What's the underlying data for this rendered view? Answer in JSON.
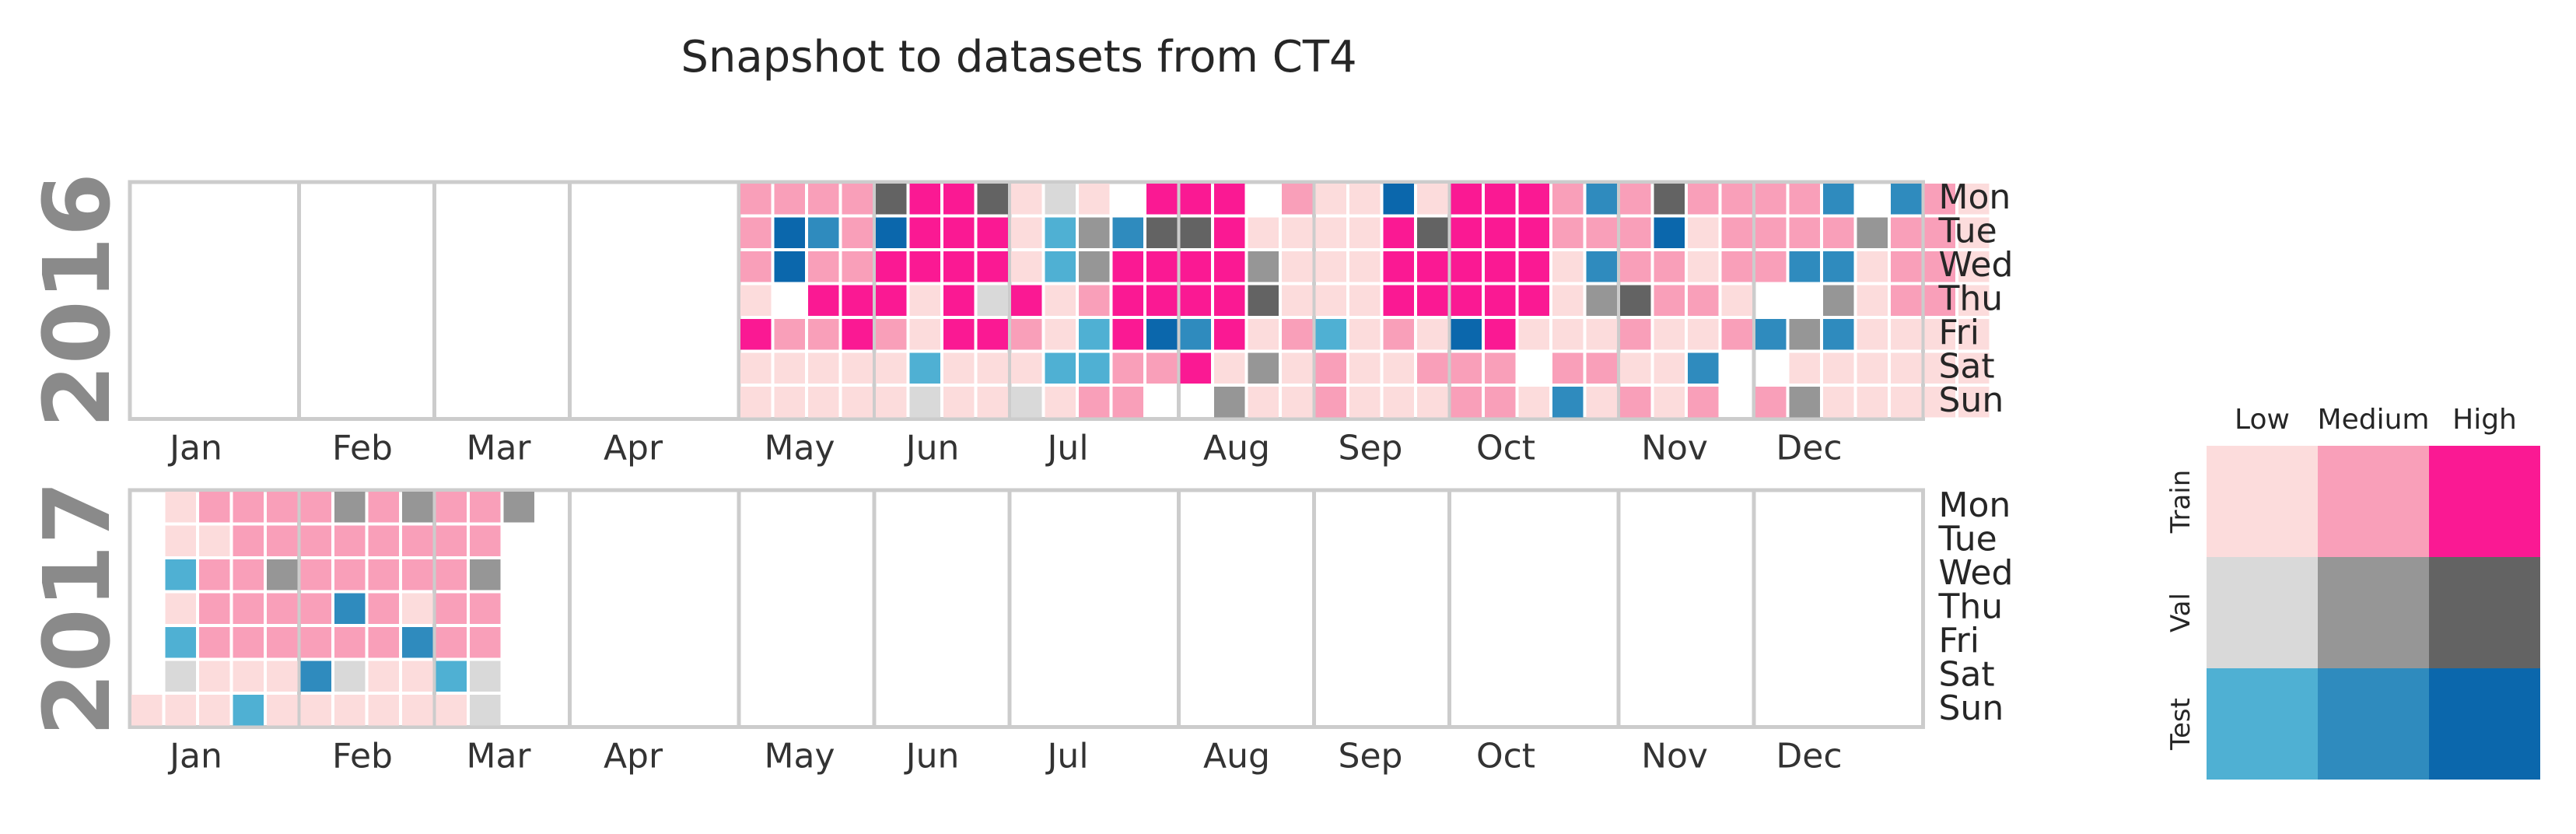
{
  "chart_data": {
    "type": "heatmap",
    "title": "Snapshot to datasets from CT4",
    "subtype": "calendar-heatmap",
    "months": [
      "Jan",
      "Feb",
      "Mar",
      "Apr",
      "May",
      "Jun",
      "Jul",
      "Aug",
      "Sep",
      "Oct",
      "Nov",
      "Dec"
    ],
    "weekdays": [
      "Mon",
      "Tue",
      "Wed",
      "Thu",
      "Fri",
      "Sat",
      "Sun"
    ],
    "category_codes": {
      "T1": "Train Low",
      "T2": "Train Medium",
      "T3": "Train High",
      "V1": "Val Low",
      "V2": "Val Medium",
      "V3": "Val High",
      "S1": "Test Low",
      "S2": "Test Medium",
      "S3": "Test High",
      "-": "no data"
    },
    "years": [
      {
        "year": "2016",
        "first_week": 18,
        "weeks": [
          [
            "T2",
            "T2",
            "T2",
            "T1",
            "T3",
            "T1",
            "T1"
          ],
          [
            "T2",
            "S3",
            "S3",
            "-",
            "T2",
            "T1",
            "T1"
          ],
          [
            "T2",
            "S2",
            "T2",
            "T3",
            "T2",
            "T1",
            "T1"
          ],
          [
            "T2",
            "T2",
            "T2",
            "T3",
            "T3",
            "T1",
            "T1"
          ],
          [
            "V3",
            "S3",
            "T3",
            "T3",
            "T2",
            "T1",
            "T1"
          ],
          [
            "T3",
            "T3",
            "T3",
            "T1",
            "T1",
            "S1",
            "V1"
          ],
          [
            "T3",
            "T3",
            "T3",
            "T3",
            "T3",
            "T1",
            "T1"
          ],
          [
            "V3",
            "T3",
            "T3",
            "V1",
            "T3",
            "T1",
            "T1"
          ],
          [
            "T1",
            "T1",
            "T1",
            "T3",
            "T2",
            "T1",
            "V1"
          ],
          [
            "V1",
            "S1",
            "S1",
            "T1",
            "T1",
            "S1",
            "T1"
          ],
          [
            "T1",
            "V2",
            "V2",
            "T2",
            "S1",
            "S1",
            "T2"
          ],
          [
            "-",
            "S2",
            "T3",
            "T3",
            "T3",
            "T2",
            "T2"
          ],
          [
            "T3",
            "V3",
            "T3",
            "T3",
            "S3",
            "T2",
            "-"
          ],
          [
            "T3",
            "V3",
            "T3",
            "T3",
            "S2",
            "T3",
            "-"
          ],
          [
            "T3",
            "T3",
            "T3",
            "T3",
            "T3",
            "T1",
            "V2"
          ],
          [
            "-",
            "T1",
            "V2",
            "V3",
            "T1",
            "V2",
            "T1"
          ],
          [
            "T2",
            "T1",
            "T1",
            "T1",
            "T2",
            "T1",
            "T1"
          ],
          [
            "T1",
            "T1",
            "T1",
            "T1",
            "S1",
            "T2",
            "T2"
          ],
          [
            "T1",
            "T1",
            "T1",
            "T1",
            "T1",
            "T1",
            "T1"
          ],
          [
            "S3",
            "T3",
            "T3",
            "T3",
            "T2",
            "T1",
            "T1"
          ],
          [
            "T1",
            "V3",
            "T3",
            "T3",
            "T1",
            "T2",
            "T1"
          ],
          [
            "T3",
            "T3",
            "T3",
            "T3",
            "S3",
            "T2",
            "T2"
          ],
          [
            "T3",
            "T3",
            "T3",
            "T3",
            "T3",
            "T2",
            "T2"
          ],
          [
            "T3",
            "T3",
            "T3",
            "T3",
            "T1",
            "-",
            "T1"
          ],
          [
            "T2",
            "T2",
            "T1",
            "T1",
            "T1",
            "T2",
            "S2"
          ],
          [
            "S2",
            "T2",
            "S2",
            "V2",
            "T1",
            "T2",
            "T1"
          ],
          [
            "T2",
            "T2",
            "T2",
            "V3",
            "T2",
            "T1",
            "T2"
          ],
          [
            "V3",
            "S3",
            "T2",
            "T2",
            "T1",
            "T1",
            "T1"
          ],
          [
            "T2",
            "T1",
            "T1",
            "T2",
            "T1",
            "S2",
            "T2"
          ],
          [
            "T2",
            "T2",
            "T2",
            "T1",
            "T2",
            "-",
            "-"
          ],
          [
            "T2",
            "T2",
            "T2",
            "-",
            "S2",
            "-",
            "T2"
          ],
          [
            "T2",
            "T2",
            "S2",
            "-",
            "V2",
            "T1",
            "V2"
          ],
          [
            "S2",
            "T2",
            "S2",
            "V2",
            "S2",
            "T1",
            "T1"
          ],
          [
            "-",
            "V2",
            "T1",
            "T1",
            "T1",
            "T1",
            "T1"
          ],
          [
            "S2",
            "T2",
            "T2",
            "T2",
            "T1",
            "T1",
            "T1"
          ],
          [
            "T2",
            "T2",
            "T2",
            "T2",
            "T1",
            "T1",
            "T1"
          ],
          [
            "T1",
            "T1",
            "T1",
            "T1",
            "T1",
            "T1",
            "T1"
          ]
        ]
      },
      {
        "year": "2017",
        "first_week": 0,
        "weeks": [
          [
            "-",
            "-",
            "-",
            "-",
            "-",
            "-",
            "T1"
          ],
          [
            "T1",
            "T1",
            "S1",
            "T1",
            "S1",
            "V1",
            "T1"
          ],
          [
            "T2",
            "T1",
            "T2",
            "T2",
            "T2",
            "T1",
            "T1"
          ],
          [
            "T2",
            "T2",
            "T2",
            "T2",
            "T2",
            "T1",
            "S1"
          ],
          [
            "T2",
            "T2",
            "V2",
            "T2",
            "T2",
            "T1",
            "T1"
          ],
          [
            "T2",
            "T2",
            "T2",
            "T2",
            "T2",
            "S2",
            "T1"
          ],
          [
            "V2",
            "T2",
            "T2",
            "S2",
            "T2",
            "V1",
            "T1"
          ],
          [
            "T2",
            "T2",
            "T2",
            "T2",
            "T2",
            "T1",
            "T1"
          ],
          [
            "V2",
            "T2",
            "T2",
            "T1",
            "S2",
            "T1",
            "T1"
          ],
          [
            "T2",
            "T2",
            "T2",
            "T2",
            "T2",
            "S1",
            "T1"
          ],
          [
            "T2",
            "T2",
            "V2",
            "T2",
            "T2",
            "V1",
            "V1"
          ],
          [
            "V2",
            "-",
            "-",
            "-",
            "-",
            "-",
            "-"
          ]
        ]
      }
    ],
    "legend": {
      "columns": [
        "Low",
        "Medium",
        "High"
      ],
      "rows": [
        "Train",
        "Val",
        "Test"
      ],
      "colors": [
        [
          "#fcdcdc",
          "#f99fb9",
          "#fa1993"
        ],
        [
          "#d9d9d9",
          "#969696",
          "#636363"
        ],
        [
          "#4fb0d3",
          "#2f8bbe",
          "#0b67ac"
        ]
      ]
    }
  }
}
